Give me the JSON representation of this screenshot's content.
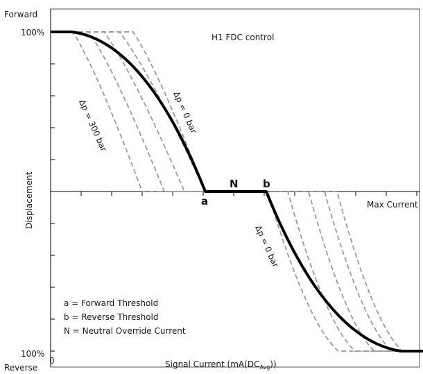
{
  "chart_data": {
    "type": "line",
    "title": "H1 FDC control",
    "ylabel": "Displacement",
    "xlabel_parts": {
      "main": "Signal Current (mA(DC",
      "sub": "Avg",
      "end": "))"
    },
    "y_top_label": "Forward",
    "y_bottom_label": "Reverse",
    "y_top_tick": "100%",
    "y_bottom_tick": "100%",
    "x_origin_label": "0",
    "x_end_label": "Max Current",
    "points": {
      "a": "a",
      "b": "b",
      "N": "N"
    },
    "annotations": {
      "dp_zero_forward": "Δp = 0 bar",
      "dp_300_forward": "Δp = 300 bar",
      "dp_zero_reverse": "Δp = 0 bar"
    },
    "legend_notes": [
      "a = Forward Threshold",
      "b = Reverse Threshold",
      "N = Neutral Override Current"
    ]
  }
}
